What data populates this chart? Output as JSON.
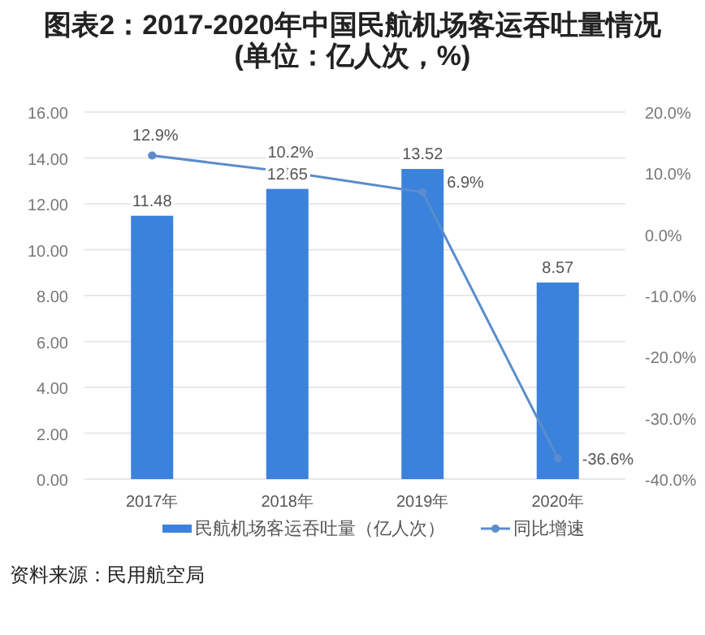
{
  "chart_data": {
    "type": "bar",
    "title": "图表2：2017-2020年中国民航机场客运吞吐量情况(单位：亿人次，%)",
    "categories": [
      "2017年",
      "2018年",
      "2019年",
      "2020年"
    ],
    "series": [
      {
        "name": "民航机场客运吞吐量（亿人次）",
        "color": "#3b82dc",
        "values": [
          11.48,
          12.65,
          13.52,
          8.57
        ],
        "value_labels": [
          "11.48",
          "12.65",
          "13.52",
          "8.57"
        ]
      },
      {
        "name": "同比增速",
        "type": "line",
        "axis": "y2",
        "color": "#5b8ccc",
        "marker": "circle",
        "values": [
          12.9,
          10.2,
          6.9,
          -36.6
        ],
        "value_labels": [
          "12.9%",
          "10.2%",
          "6.9%",
          "-36.6%"
        ]
      }
    ],
    "ylim": [
      0,
      16
    ],
    "yticks": [
      {
        "value": 0,
        "label": "0.00"
      },
      {
        "value": 2,
        "label": "2.00"
      },
      {
        "value": 4,
        "label": "4.00"
      },
      {
        "value": 6,
        "label": "6.00"
      },
      {
        "value": 8,
        "label": "8.00"
      },
      {
        "value": 10,
        "label": "10.00"
      },
      {
        "value": 12,
        "label": "12.00"
      },
      {
        "value": 14,
        "label": "14.00"
      },
      {
        "value": 16,
        "label": "16.00"
      }
    ],
    "y2lim": [
      -40,
      20
    ],
    "y2ticks": [
      {
        "value": -40,
        "label": "-40.0%"
      },
      {
        "value": -30,
        "label": "-30.0%"
      },
      {
        "value": -20,
        "label": "-20.0%"
      },
      {
        "value": -10,
        "label": "-10.0%"
      },
      {
        "value": 0,
        "label": "0.0%"
      },
      {
        "value": 10,
        "label": "10.0%"
      },
      {
        "value": 20,
        "label": "20.0%"
      }
    ],
    "grid": "y",
    "legend": "bottom",
    "annotations": [
      "资料来源：民用航空局"
    ]
  }
}
